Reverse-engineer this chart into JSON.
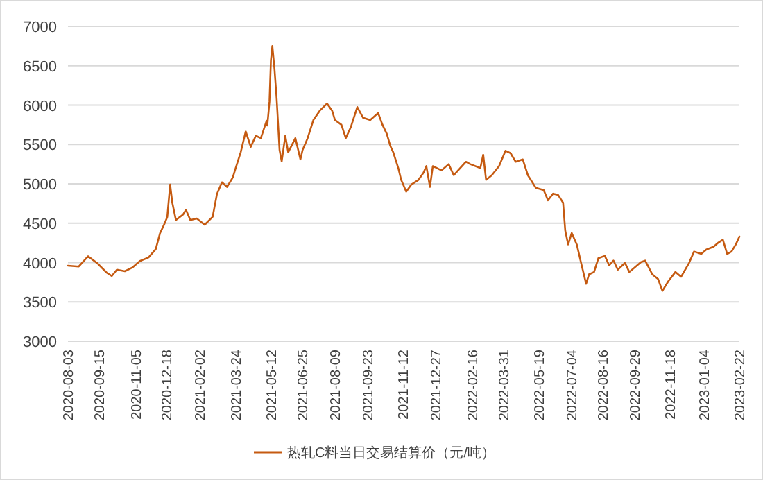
{
  "chart_data": {
    "type": "line",
    "x": [
      "2020-08-03",
      "2020-08-18",
      "2020-08-31",
      "2020-09-13",
      "2020-09-26",
      "2020-10-03",
      "2020-10-10",
      "2020-10-21",
      "2020-11-01",
      "2020-11-11",
      "2020-11-23",
      "2020-12-03",
      "2020-12-09",
      "2020-12-15",
      "2020-12-19",
      "2020-12-23",
      "2020-12-26",
      "2020-12-31",
      "2021-01-10",
      "2021-01-14",
      "2021-01-20",
      "2021-01-29",
      "2021-02-09",
      "2021-02-20",
      "2021-02-26",
      "2021-03-05",
      "2021-03-12",
      "2021-03-20",
      "2021-03-24",
      "2021-03-31",
      "2021-04-07",
      "2021-04-14",
      "2021-04-21",
      "2021-04-28",
      "2021-05-06",
      "2021-05-07",
      "2021-05-10",
      "2021-05-12",
      "2021-05-14",
      "2021-05-17",
      "2021-05-20",
      "2021-05-24",
      "2021-05-27",
      "2021-06-01",
      "2021-06-05",
      "2021-06-15",
      "2021-06-22",
      "2021-06-25",
      "2021-07-02",
      "2021-07-10",
      "2021-07-19",
      "2021-07-29",
      "2021-08-05",
      "2021-08-09",
      "2021-08-18",
      "2021-08-24",
      "2021-08-31",
      "2021-09-09",
      "2021-09-17",
      "2021-09-27",
      "2021-10-08",
      "2021-10-14",
      "2021-10-20",
      "2021-10-25",
      "2021-10-29",
      "2021-11-05",
      "2021-11-09",
      "2021-11-16",
      "2021-11-23",
      "2021-12-03",
      "2021-12-10",
      "2021-12-14",
      "2021-12-19",
      "2021-12-23",
      "2022-01-04",
      "2022-01-14",
      "2022-01-21",
      "2022-02-07",
      "2022-02-13",
      "2022-02-27",
      "2022-03-03",
      "2022-03-07",
      "2022-03-15",
      "2022-03-25",
      "2022-04-03",
      "2022-04-10",
      "2022-04-17",
      "2022-04-27",
      "2022-05-04",
      "2022-05-15",
      "2022-05-26",
      "2022-06-01",
      "2022-06-08",
      "2022-06-15",
      "2022-06-22",
      "2022-06-25",
      "2022-06-29",
      "2022-07-04",
      "2022-07-11",
      "2022-07-17",
      "2022-07-24",
      "2022-07-28",
      "2022-08-04",
      "2022-08-10",
      "2022-08-19",
      "2022-08-25",
      "2022-08-31",
      "2022-09-06",
      "2022-09-16",
      "2022-09-22",
      "2022-10-08",
      "2022-10-14",
      "2022-10-24",
      "2022-11-01",
      "2022-11-07",
      "2022-11-15",
      "2022-11-25",
      "2022-12-03",
      "2022-12-14",
      "2022-12-21",
      "2022-12-31",
      "2023-01-07",
      "2023-01-17",
      "2023-01-24",
      "2023-01-30",
      "2023-02-05",
      "2023-02-11",
      "2023-02-17",
      "2023-02-22"
    ],
    "series": [
      {
        "name": "热轧C料当日交易结算价（元/吨）",
        "color": "#c55a11",
        "values": [
          3960,
          3950,
          4080,
          3990,
          3870,
          3830,
          3910,
          3890,
          3940,
          4020,
          4065,
          4170,
          4375,
          4490,
          4580,
          4990,
          4760,
          4540,
          4610,
          4670,
          4540,
          4560,
          4480,
          4580,
          4870,
          5020,
          4960,
          5080,
          5200,
          5400,
          5665,
          5470,
          5610,
          5580,
          5800,
          5740,
          6045,
          6570,
          6750,
          6455,
          6075,
          5430,
          5285,
          5610,
          5400,
          5580,
          5310,
          5430,
          5580,
          5810,
          5930,
          6020,
          5930,
          5810,
          5750,
          5580,
          5720,
          5975,
          5840,
          5810,
          5900,
          5750,
          5635,
          5480,
          5400,
          5200,
          5050,
          4900,
          4990,
          5050,
          5140,
          5225,
          4960,
          5225,
          5170,
          5250,
          5110,
          5280,
          5250,
          5200,
          5370,
          5050,
          5110,
          5225,
          5420,
          5390,
          5280,
          5310,
          5110,
          4950,
          4920,
          4790,
          4875,
          4860,
          4760,
          4405,
          4230,
          4375,
          4230,
          3995,
          3730,
          3850,
          3880,
          4055,
          4085,
          3965,
          4025,
          3910,
          3995,
          3880,
          4005,
          4025,
          3850,
          3790,
          3640,
          3760,
          3880,
          3820,
          3995,
          4140,
          4110,
          4165,
          4200,
          4255,
          4290,
          4110,
          4140,
          4230,
          4330
        ]
      }
    ],
    "xlim": [
      "2020-08-03",
      "2023-02-22"
    ],
    "xticks": [
      "2020-08-03",
      "2020-09-15",
      "2020-11-05",
      "2020-12-18",
      "2021-02-02",
      "2021-03-24",
      "2021-05-12",
      "2021-06-25",
      "2021-08-09",
      "2021-09-23",
      "2021-11-12",
      "2021-12-27",
      "2022-02-16",
      "2022-03-31",
      "2022-05-19",
      "2022-07-04",
      "2022-08-16",
      "2022-09-29",
      "2022-11-18",
      "2023-01-04",
      "2023-02-22"
    ],
    "ylim": [
      3000,
      7000
    ],
    "yticks": [
      3000,
      3500,
      4000,
      4500,
      5000,
      5500,
      6000,
      6500,
      7000
    ],
    "grid": "y",
    "legend": "bottom"
  }
}
